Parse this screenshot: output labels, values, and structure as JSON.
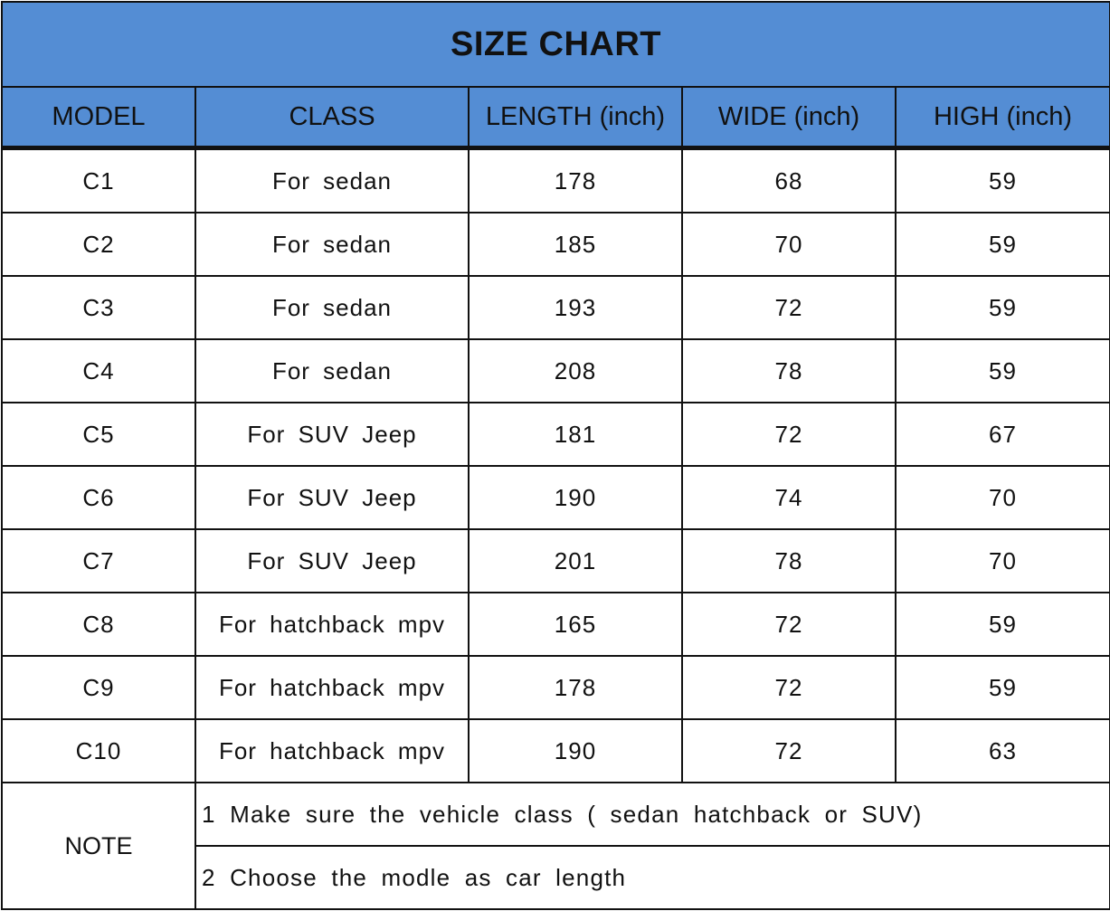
{
  "title": "SIZE CHART",
  "columns": [
    "MODEL",
    "CLASS",
    "LENGTH (inch)",
    "WIDE (inch)",
    "HIGH (inch)"
  ],
  "header_color": "#548dd4",
  "rows": [
    [
      "C1",
      "For sedan",
      "178",
      "68",
      "59"
    ],
    [
      "C2",
      "For sedan",
      "185",
      "70",
      "59"
    ],
    [
      "C3",
      "For sedan",
      "193",
      "72",
      "59"
    ],
    [
      "C4",
      "For sedan",
      "208",
      "78",
      "59"
    ],
    [
      "C5",
      "For SUV Jeep",
      "181",
      "72",
      "67"
    ],
    [
      "C6",
      "For SUV Jeep",
      "190",
      "74",
      "70"
    ],
    [
      "C7",
      "For SUV Jeep",
      "201",
      "78",
      "70"
    ],
    [
      "C8",
      "For hatchback mpv",
      "165",
      "72",
      "59"
    ],
    [
      "C9",
      "For hatchback mpv",
      "178",
      "72",
      "59"
    ],
    [
      "C10",
      "For hatchback mpv",
      "190",
      "72",
      "63"
    ]
  ],
  "note": {
    "label": "NOTE",
    "lines": [
      "1 Make sure the vehicle class ( sedan hatchback or SUV)",
      "2 Choose the modle as car length"
    ]
  }
}
